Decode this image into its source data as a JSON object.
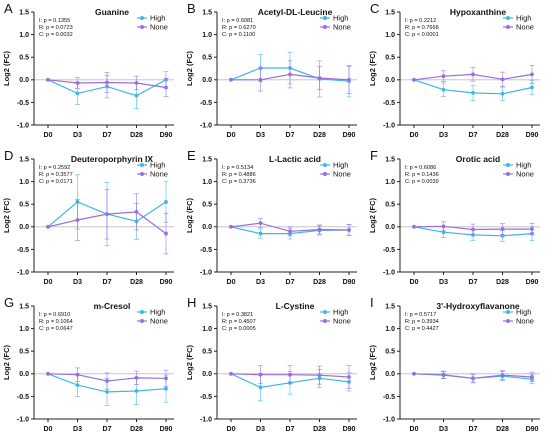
{
  "colors": {
    "high": "#3fb6ea",
    "none": "#9b6ee0",
    "axis": "#222222",
    "zero_line": "#bdbdbd"
  },
  "chart_data": [
    {
      "letter": "A",
      "title": "Guanine",
      "type": "line",
      "stats": [
        "I: p = 0.1355",
        "R: p = 0.0723",
        "C: p = 0.0032"
      ],
      "categories": [
        "D0",
        "D3",
        "D7",
        "D28",
        "D90"
      ],
      "ylabel": "Log2 (FC)",
      "ylim": [
        -1.0,
        1.5
      ],
      "yticks": [
        "1.5",
        "1.0",
        "0.5",
        "0.0",
        "-0.5",
        "-1.0"
      ],
      "legend": "top-right",
      "series": [
        {
          "name": "High",
          "values": [
            0,
            -0.3,
            -0.15,
            -0.35,
            0.0
          ],
          "errors": [
            0,
            0.25,
            0.25,
            0.28,
            0.18
          ]
        },
        {
          "name": "None",
          "values": [
            0,
            -0.07,
            -0.06,
            -0.07,
            -0.17
          ],
          "errors": [
            0,
            0.12,
            0.22,
            0.15,
            0.2
          ]
        }
      ]
    },
    {
      "letter": "B",
      "title": "Acetyl-DL-Leucine",
      "type": "line",
      "stats": [
        "I: p = 0.6081",
        "R: p = 0.6270",
        "C: p = 0.1100"
      ],
      "categories": [
        "D0",
        "D3",
        "D7",
        "D28",
        "D90"
      ],
      "ylabel": "Log2 (FC)",
      "ylim": [
        -1.0,
        1.5
      ],
      "yticks": [
        "1.5",
        "1.0",
        "0.5",
        "0.0",
        "-0.5",
        "-1.0"
      ],
      "legend": "top-right",
      "series": [
        {
          "name": "High",
          "values": [
            0,
            0.26,
            0.26,
            0.02,
            -0.03
          ],
          "errors": [
            0,
            0.3,
            0.35,
            0.4,
            0.35
          ]
        },
        {
          "name": "None",
          "values": [
            0,
            0.0,
            0.12,
            0.04,
            0.0
          ],
          "errors": [
            0,
            0.25,
            0.3,
            0.25,
            0.3
          ]
        }
      ]
    },
    {
      "letter": "C",
      "title": "Hypoxanthine",
      "type": "line",
      "stats": [
        "I: p = 0.2212",
        "R: p = 0.7668",
        "C: p < 0.0001"
      ],
      "categories": [
        "D0",
        "D3",
        "D7",
        "D28",
        "D90"
      ],
      "ylabel": "Log2 (FC)",
      "ylim": [
        -1.0,
        1.5
      ],
      "yticks": [
        "1.5",
        "1.0",
        "0.5",
        "0.0",
        "-0.5",
        "-1.0"
      ],
      "legend": "top-right",
      "series": [
        {
          "name": "High",
          "values": [
            0,
            -0.22,
            -0.29,
            -0.31,
            -0.17
          ],
          "errors": [
            0,
            0.15,
            0.17,
            0.15,
            0.16
          ]
        },
        {
          "name": "None",
          "values": [
            0,
            0.08,
            0.12,
            0.01,
            0.12
          ],
          "errors": [
            0,
            0.12,
            0.15,
            0.16,
            0.2
          ]
        }
      ]
    },
    {
      "letter": "D",
      "title": "Deuteroporphyrin IX",
      "type": "line",
      "stats": [
        "I: p = 0.2592",
        "R: p = 0.3577",
        "C: p = 0.0171"
      ],
      "categories": [
        "D0",
        "D3",
        "D7",
        "D28",
        "D90"
      ],
      "ylabel": "Log2 (FC)",
      "ylim": [
        -1.0,
        1.5
      ],
      "yticks": [
        "1.5",
        "1.0",
        "0.5",
        "0.0",
        "-0.5",
        "-1.0"
      ],
      "legend": "top-right",
      "series": [
        {
          "name": "High",
          "values": [
            0,
            0.55,
            0.28,
            0.12,
            0.55
          ],
          "errors": [
            0,
            0.6,
            0.7,
            0.4,
            0.45
          ]
        },
        {
          "name": "None",
          "values": [
            0,
            0.15,
            0.28,
            0.33,
            -0.15
          ],
          "errors": [
            0,
            0.45,
            0.55,
            0.4,
            0.45
          ]
        }
      ]
    },
    {
      "letter": "E",
      "title": "L-Lactic acid",
      "type": "line",
      "stats": [
        "I: p = 0.5134",
        "R: p = 0.4886",
        "C: p = 0.3736"
      ],
      "categories": [
        "D0",
        "D3",
        "D7",
        "D28",
        "D90"
      ],
      "ylabel": "Log2 (FC)",
      "ylim": [
        -1.0,
        1.5
      ],
      "yticks": [
        "1.5",
        "1.0",
        "0.5",
        "0.0",
        "-0.5",
        "-1.0"
      ],
      "legend": "top-right",
      "series": [
        {
          "name": "High",
          "values": [
            0,
            -0.15,
            -0.15,
            -0.08,
            -0.07
          ],
          "errors": [
            0,
            0.1,
            0.12,
            0.1,
            0.12
          ]
        },
        {
          "name": "None",
          "values": [
            0,
            0.08,
            -0.1,
            -0.06,
            -0.07
          ],
          "errors": [
            0,
            0.1,
            0.1,
            0.1,
            0.12
          ]
        }
      ]
    },
    {
      "letter": "F",
      "title": "Orotic acid",
      "type": "line",
      "stats": [
        "I: p = 0.6086",
        "R: p = 0.1436",
        "C: p = 0.0039"
      ],
      "categories": [
        "D0",
        "D3",
        "D7",
        "D28",
        "D90"
      ],
      "ylabel": "Log2 (FC)",
      "ylim": [
        -1.0,
        1.5
      ],
      "yticks": [
        "1.5",
        "1.0",
        "0.5",
        "0.0",
        "-0.5",
        "-1.0"
      ],
      "legend": "top-right",
      "series": [
        {
          "name": "High",
          "values": [
            0,
            -0.12,
            -0.18,
            -0.2,
            -0.15
          ],
          "errors": [
            0,
            0.12,
            0.12,
            0.12,
            0.15
          ]
        },
        {
          "name": "None",
          "values": [
            0,
            0.01,
            -0.06,
            -0.05,
            -0.05
          ],
          "errors": [
            0,
            0.1,
            0.12,
            0.12,
            0.12
          ]
        }
      ]
    },
    {
      "letter": "G",
      "title": "m-Cresol",
      "type": "line",
      "stats": [
        "I: p = 0.6910",
        "R: p = 0.1064",
        "C: p = 0.0647"
      ],
      "categories": [
        "D0",
        "D3",
        "D7",
        "D28",
        "D90"
      ],
      "ylabel": "Log2 (FC)",
      "ylim": [
        -1.0,
        1.5
      ],
      "yticks": [
        "1.5",
        "1.0",
        "0.5",
        "0.0",
        "-0.5",
        "-1.0"
      ],
      "legend": "top-right",
      "series": [
        {
          "name": "High",
          "values": [
            0,
            -0.25,
            -0.4,
            -0.38,
            -0.33
          ],
          "errors": [
            0,
            0.25,
            0.3,
            0.3,
            0.3
          ]
        },
        {
          "name": "None",
          "values": [
            0,
            -0.02,
            -0.16,
            -0.09,
            -0.1
          ],
          "errors": [
            0,
            0.15,
            0.18,
            0.15,
            0.18
          ]
        }
      ]
    },
    {
      "letter": "H",
      "title": "L-Cystine",
      "type": "line",
      "stats": [
        "I: p = 0.3821",
        "R: p = 0.4507",
        "C: p = 0.0005"
      ],
      "categories": [
        "D0",
        "D3",
        "D7",
        "D28",
        "D90"
      ],
      "ylabel": "Log2 (FC)",
      "ylim": [
        -1.0,
        1.5
      ],
      "yticks": [
        "1.5",
        "1.0",
        "0.5",
        "0.0",
        "-0.5",
        "-1.0"
      ],
      "legend": "top-right",
      "series": [
        {
          "name": "High",
          "values": [
            0,
            -0.3,
            -0.2,
            -0.1,
            -0.18
          ],
          "errors": [
            0,
            0.3,
            0.25,
            0.2,
            0.2
          ]
        },
        {
          "name": "None",
          "values": [
            0,
            -0.02,
            -0.02,
            -0.03,
            -0.07
          ],
          "errors": [
            0,
            0.2,
            0.2,
            0.2,
            0.25
          ]
        }
      ]
    },
    {
      "letter": "I",
      "title": "3'-Hydroxyflavanone",
      "type": "line",
      "stats": [
        "I: p = 0.5717",
        "R: p = 0.3934",
        "C: p = 0.4427"
      ],
      "categories": [
        "D0",
        "D3",
        "D7",
        "D28",
        "D90"
      ],
      "ylabel": "Log2 (FC)",
      "ylim": [
        -1.0,
        1.5
      ],
      "yticks": [
        "1.5",
        "1.0",
        "0.5",
        "0.0",
        "-0.5",
        "-1.0"
      ],
      "legend": "top-right",
      "series": [
        {
          "name": "High",
          "values": [
            0,
            -0.02,
            -0.1,
            -0.05,
            -0.12
          ],
          "errors": [
            0,
            0.08,
            0.08,
            0.1,
            0.1
          ]
        },
        {
          "name": "None",
          "values": [
            0,
            -0.03,
            -0.1,
            -0.03,
            -0.07
          ],
          "errors": [
            0,
            0.08,
            0.1,
            0.1,
            0.1
          ]
        }
      ]
    }
  ]
}
